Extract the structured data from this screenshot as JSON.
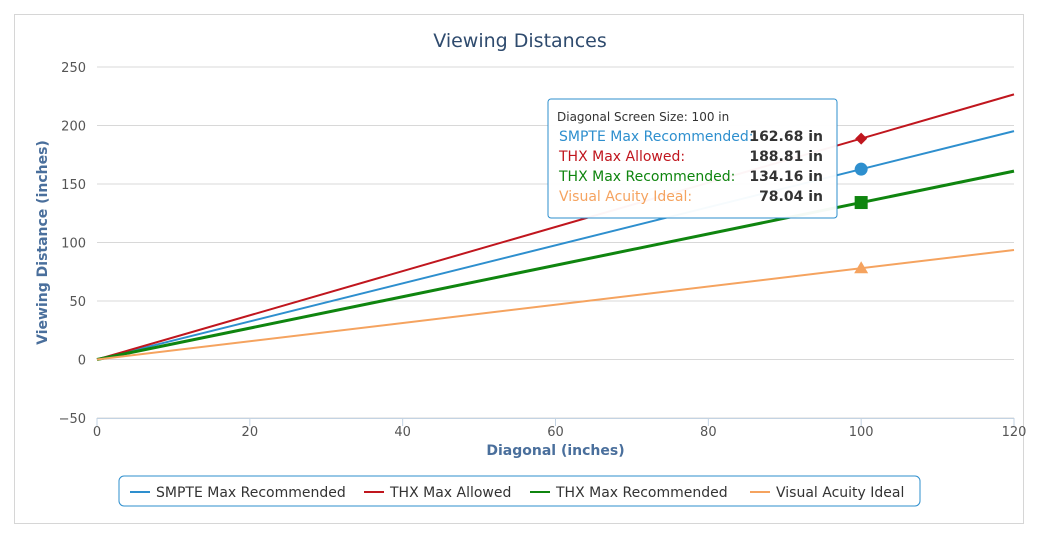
{
  "chart_data": {
    "type": "line",
    "title": "Viewing Distances",
    "xlabel": "Diagonal (inches)",
    "ylabel": "Viewing Distance (inches)",
    "xlim": [
      0,
      120
    ],
    "ylim": [
      -50,
      250
    ],
    "x_ticks": [
      "0",
      "20",
      "40",
      "60",
      "80",
      "100",
      "120"
    ],
    "y_ticks": [
      "−50",
      "0",
      "50",
      "100",
      "150",
      "200",
      "250"
    ],
    "x_tick_values": [
      0,
      20,
      40,
      60,
      80,
      100,
      120
    ],
    "y_tick_values": [
      -50,
      0,
      50,
      100,
      150,
      200,
      250
    ],
    "grid": "horizontal",
    "legend_position": "bottom",
    "x": [
      0,
      120
    ],
    "series": [
      {
        "name": "SMPTE Max Recommended",
        "color": "#2e8fce",
        "values": [
          0,
          195.2
        ],
        "marker": "circle"
      },
      {
        "name": "THX Max Allowed",
        "color": "#c0161e",
        "values": [
          0,
          226.6
        ],
        "marker": "diamond"
      },
      {
        "name": "THX Max Recommended",
        "color": "#0f850f",
        "values": [
          0,
          161.0
        ],
        "marker": "square"
      },
      {
        "name": "Visual Acuity Ideal",
        "color": "#f5a35f",
        "values": [
          0,
          93.6
        ],
        "marker": "triangle"
      }
    ],
    "hover": {
      "x": 100,
      "header": "Diagonal Screen Size: 100 in",
      "points": [
        {
          "label": "SMPTE Max Recommended:",
          "value": 162.68,
          "value_text": "162.68 in"
        },
        {
          "label": "THX Max Allowed:",
          "value": 188.81,
          "value_text": "188.81 in"
        },
        {
          "label": "THX Max Recommended:",
          "value": 134.16,
          "value_text": "134.16 in"
        },
        {
          "label": "Visual Acuity Ideal:",
          "value": 78.04,
          "value_text": "78.04 in"
        }
      ]
    }
  }
}
